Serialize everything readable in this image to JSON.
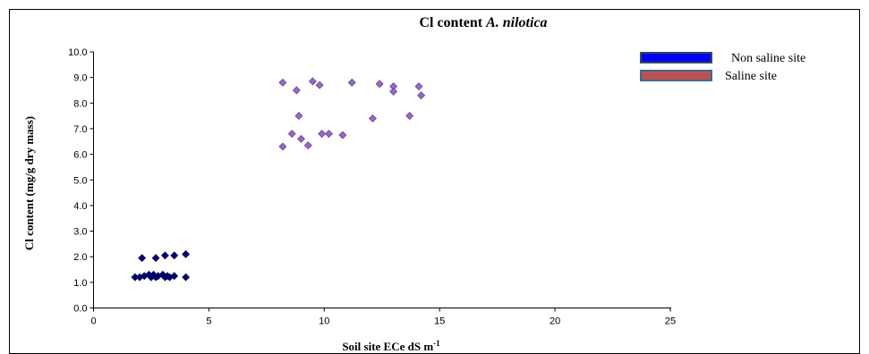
{
  "chart_data": {
    "type": "scatter",
    "title_main": "Cl content ",
    "title_species": "A. nilotica",
    "xlabel_main": "Soil site ECe dS m",
    "xlabel_sup": "-1",
    "ylabel": "Cl content (mg/g dry mass)",
    "xlim": [
      0,
      25
    ],
    "ylim": [
      0.0,
      10.0
    ],
    "x_ticks": [
      0,
      5,
      10,
      15,
      20,
      25
    ],
    "y_ticks": [
      0.0,
      1.0,
      2.0,
      3.0,
      4.0,
      5.0,
      6.0,
      7.0,
      8.0,
      9.0,
      10.0
    ],
    "x_tick_labels": [
      "0",
      "5",
      "10",
      "15",
      "20",
      "25"
    ],
    "y_tick_labels": [
      "0.0",
      "1.0",
      "2.0",
      "3.0",
      "4.0",
      "5.0",
      "6.0",
      "7.0",
      "8.0",
      "9.0",
      "10.0"
    ],
    "grid": false,
    "legend_position": "top-right",
    "series": [
      {
        "name": "Non saline site",
        "marker_color": "#000080",
        "legend_color": "#0000ff",
        "legend_border": "#2f4f4f",
        "points": [
          [
            1.8,
            1.2
          ],
          [
            2.0,
            1.2
          ],
          [
            2.2,
            1.25
          ],
          [
            2.4,
            1.3
          ],
          [
            2.6,
            1.3
          ],
          [
            2.8,
            1.25
          ],
          [
            3.0,
            1.3
          ],
          [
            3.2,
            1.25
          ],
          [
            3.5,
            1.25
          ],
          [
            4.0,
            1.2
          ],
          [
            2.5,
            1.2
          ],
          [
            2.7,
            1.2
          ],
          [
            3.1,
            1.2
          ],
          [
            3.3,
            1.2
          ],
          [
            2.1,
            1.95
          ],
          [
            2.7,
            1.95
          ],
          [
            3.1,
            2.05
          ],
          [
            3.5,
            2.05
          ],
          [
            4.0,
            2.1
          ]
        ]
      },
      {
        "name": "Saline site",
        "marker_color": "#9966cc",
        "legend_color": "#c0504d",
        "legend_border": "#2f6fa0",
        "points": [
          [
            8.2,
            8.8
          ],
          [
            8.8,
            8.5
          ],
          [
            9.5,
            8.85
          ],
          [
            9.8,
            8.7
          ],
          [
            11.2,
            8.8
          ],
          [
            12.4,
            8.75
          ],
          [
            13.0,
            8.65
          ],
          [
            14.1,
            8.65
          ],
          [
            13.0,
            8.45
          ],
          [
            14.2,
            8.3
          ],
          [
            8.9,
            7.5
          ],
          [
            12.1,
            7.4
          ],
          [
            13.7,
            7.5
          ],
          [
            8.2,
            6.3
          ],
          [
            8.6,
            6.8
          ],
          [
            9.0,
            6.6
          ],
          [
            9.3,
            6.35
          ],
          [
            9.9,
            6.8
          ],
          [
            10.2,
            6.8
          ],
          [
            10.8,
            6.75
          ]
        ]
      }
    ]
  }
}
